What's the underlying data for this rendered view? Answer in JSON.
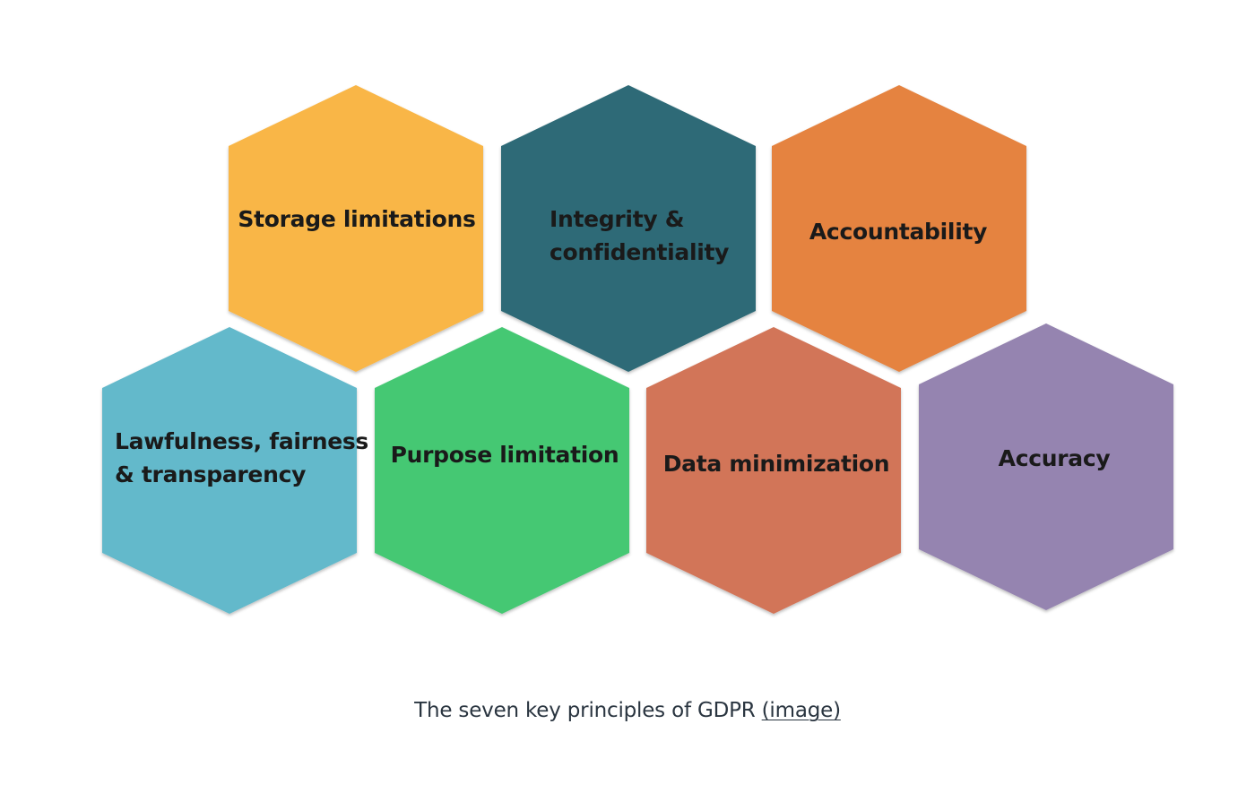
{
  "diagram": {
    "title": "The seven key principles of GDPR",
    "principles": [
      {
        "id": "storage",
        "lines": [
          "Storage limitations"
        ],
        "color": "#F9B646"
      },
      {
        "id": "integrity",
        "lines": [
          "Integrity &",
          "confidentiality"
        ],
        "color": "#2F6B77"
      },
      {
        "id": "accountability",
        "lines": [
          "Accountability"
        ],
        "color": "#E5833F"
      },
      {
        "id": "lawfulness",
        "lines": [
          "Lawfulness, fairness",
          "& transparency"
        ],
        "color": "#64B9CB"
      },
      {
        "id": "purpose",
        "lines": [
          "Purpose limitation"
        ],
        "color": "#45C873"
      },
      {
        "id": "minimization",
        "lines": [
          "Data minimization"
        ],
        "color": "#D27559"
      },
      {
        "id": "accuracy",
        "lines": [
          "Accuracy"
        ],
        "color": "#9584B0"
      }
    ]
  },
  "caption": {
    "text": "The seven key principles of GDPR ",
    "link_label": "(image)"
  }
}
